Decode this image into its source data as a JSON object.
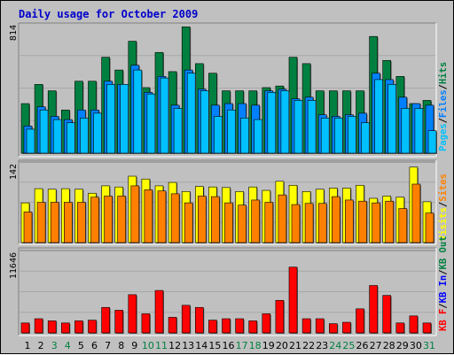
{
  "title": "Daily usage for October 2009",
  "colors": {
    "title": "#0000cc",
    "background": "#c0c0c0",
    "plot_background": "#c0c0c0",
    "hits": "#008040",
    "files": "#0080ff",
    "pages": "#00c0ff",
    "visits": "#ffff00",
    "sites": "#ff8000",
    "kbf": "#ff0000",
    "kbin": "#0000ff",
    "kbout": "#008040",
    "weekend_label": "#008040",
    "weekday_label": "#000000",
    "separator": "#000000"
  },
  "chart_data": [
    {
      "type": "bar",
      "panel": "top",
      "ymax_label": "814",
      "ylim": [
        0,
        814
      ],
      "legend_order": [
        "Pages",
        "Files",
        "Hits"
      ],
      "legend_separator": "/",
      "categories": [
        "1",
        "2",
        "3",
        "4",
        "5",
        "6",
        "7",
        "8",
        "9",
        "10",
        "11",
        "12",
        "13",
        "14",
        "15",
        "16",
        "17",
        "18",
        "19",
        "20",
        "21",
        "22",
        "23",
        "24",
        "25",
        "26",
        "27",
        "28",
        "29",
        "30",
        "31"
      ],
      "weekend": [
        3,
        4,
        10,
        11,
        17,
        18,
        24,
        25,
        31
      ],
      "series": [
        {
          "name": "Hits",
          "color_key": "hits",
          "values": [
            310,
            430,
            390,
            270,
            450,
            450,
            600,
            520,
            700,
            410,
            630,
            510,
            790,
            560,
            500,
            390,
            390,
            390,
            410,
            420,
            600,
            560,
            390,
            390,
            390,
            390,
            730,
            580,
            480,
            310,
            330
          ]
        },
        {
          "name": "Files",
          "color_key": "files",
          "values": [
            170,
            290,
            230,
            210,
            270,
            270,
            450,
            430,
            550,
            380,
            480,
            300,
            520,
            400,
            300,
            310,
            310,
            300,
            390,
            400,
            340,
            350,
            240,
            230,
            240,
            250,
            500,
            460,
            350,
            310,
            300
          ]
        },
        {
          "name": "Pages",
          "color_key": "pages",
          "values": [
            150,
            270,
            210,
            190,
            220,
            250,
            430,
            430,
            520,
            370,
            470,
            280,
            500,
            390,
            230,
            270,
            220,
            210,
            380,
            390,
            330,
            330,
            220,
            220,
            230,
            190,
            460,
            430,
            280,
            280,
            140
          ]
        }
      ]
    },
    {
      "type": "bar",
      "panel": "middle",
      "ymax_label": "142",
      "ylim": [
        0,
        142
      ],
      "legend_order": [
        "Visits",
        "Sites"
      ],
      "legend_separator": "/",
      "categories": [
        "1",
        "2",
        "3",
        "4",
        "5",
        "6",
        "7",
        "8",
        "9",
        "10",
        "11",
        "12",
        "13",
        "14",
        "15",
        "16",
        "17",
        "18",
        "19",
        "20",
        "21",
        "22",
        "23",
        "24",
        "25",
        "26",
        "27",
        "28",
        "29",
        "30",
        "31"
      ],
      "series": [
        {
          "name": "Visits",
          "color_key": "visits",
          "values": [
            70,
            95,
            94,
            95,
            94,
            87,
            100,
            98,
            117,
            112,
            100,
            106,
            90,
            99,
            98,
            97,
            90,
            98,
            92,
            108,
            101,
            90,
            94,
            96,
            96,
            101,
            78,
            82,
            80,
            133,
            72
          ]
        },
        {
          "name": "Sites",
          "color_key": "sites",
          "values": [
            54,
            71,
            71,
            71,
            71,
            80,
            82,
            82,
            100,
            93,
            91,
            86,
            70,
            82,
            81,
            70,
            66,
            75,
            71,
            84,
            67,
            69,
            69,
            81,
            75,
            73,
            70,
            73,
            60,
            103,
            52
          ]
        }
      ]
    },
    {
      "type": "bar",
      "panel": "bottom",
      "ymax_label": "11646",
      "ylim": [
        0,
        11646
      ],
      "legend_order": [
        "KB F",
        "KB In",
        "KB Out"
      ],
      "legend_separator": "/",
      "categories": [
        "1",
        "2",
        "3",
        "4",
        "5",
        "6",
        "7",
        "8",
        "9",
        "10",
        "11",
        "12",
        "13",
        "14",
        "15",
        "16",
        "17",
        "18",
        "19",
        "20",
        "21",
        "22",
        "23",
        "24",
        "25",
        "26",
        "27",
        "28",
        "29",
        "30",
        "31"
      ],
      "x_labels": [
        "1",
        "2",
        "3",
        "4",
        "5",
        "6",
        "7",
        "8",
        "9",
        "10",
        "11",
        "12",
        "13",
        "14",
        "15",
        "16",
        "17",
        "18",
        "19",
        "20",
        "21",
        "22",
        "23",
        "24",
        "25",
        "26",
        "27",
        "28",
        "29",
        "30",
        "31"
      ],
      "series": [
        {
          "name": "KB F",
          "color_key": "kbf",
          "values": [
            1400,
            2000,
            1700,
            1400,
            1700,
            1800,
            3600,
            3200,
            5400,
            2700,
            6000,
            2200,
            3900,
            3600,
            1800,
            2000,
            2000,
            1700,
            2700,
            4600,
            9300,
            2000,
            2000,
            1300,
            1500,
            3400,
            6700,
            5300,
            1400,
            2400,
            1400
          ]
        }
      ]
    }
  ]
}
